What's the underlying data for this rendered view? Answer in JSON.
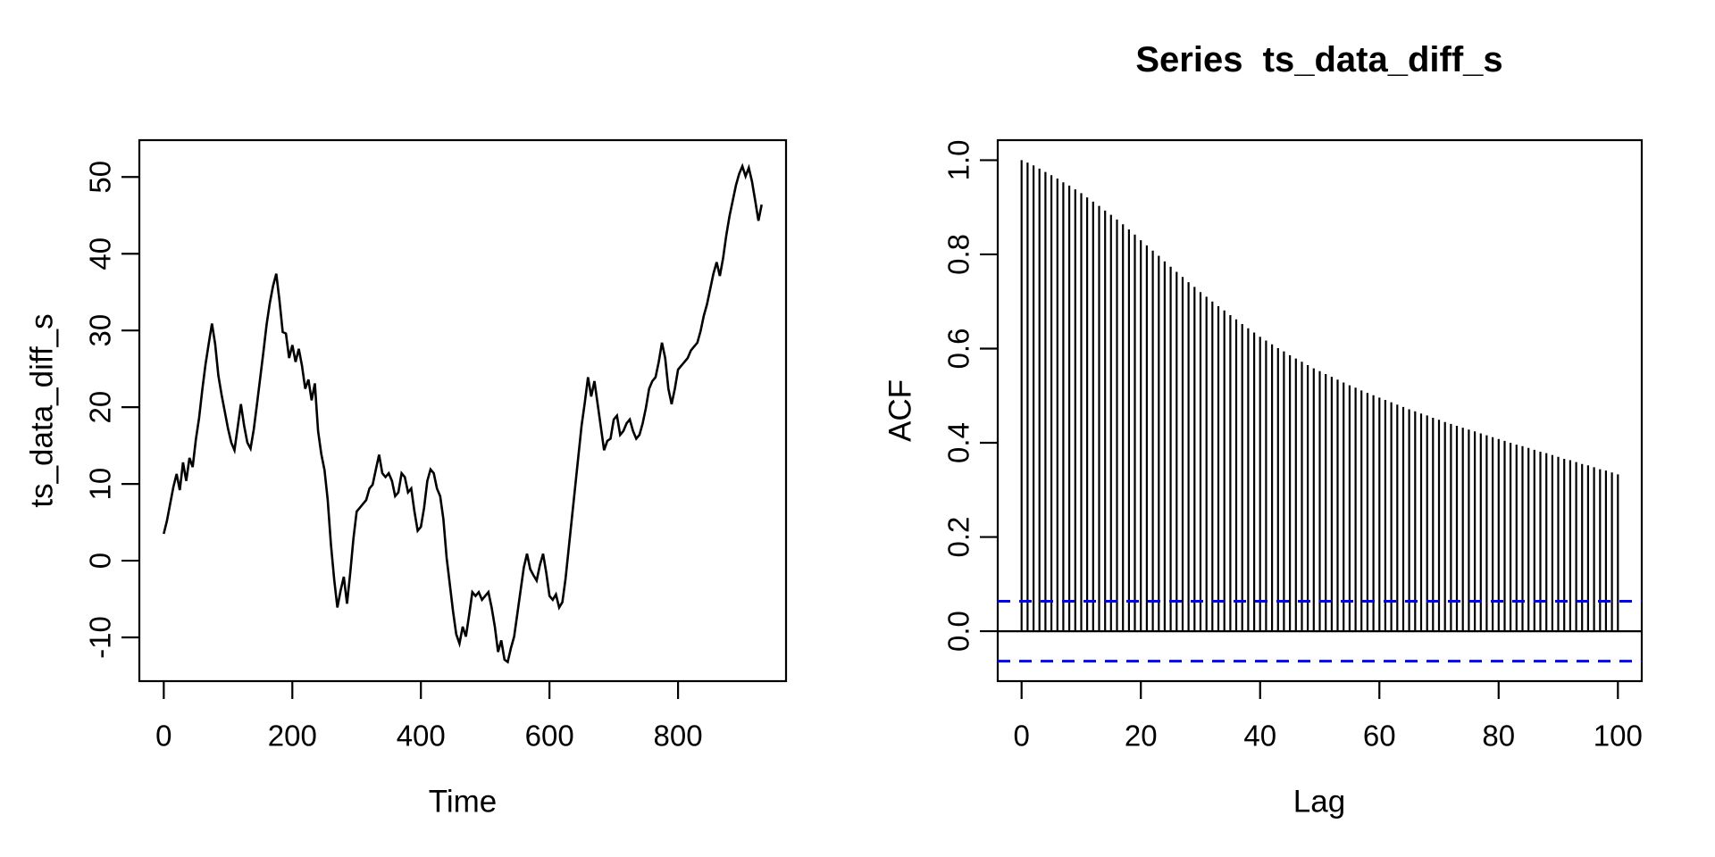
{
  "device": {
    "background": "#ffffff",
    "foreground": "#000000"
  },
  "chart_data": [
    {
      "id": "ts_plot",
      "type": "line",
      "title": "",
      "xlabel": "Time",
      "ylabel": "ts_data_diff_s",
      "line_color": "#000000",
      "x_ticks": [
        0,
        200,
        400,
        600,
        800
      ],
      "x_tick_labels": [
        "0",
        "200",
        "400",
        "600",
        "800"
      ],
      "y_ticks": [
        -10,
        0,
        10,
        20,
        30,
        40,
        50
      ],
      "y_tick_labels": [
        "-10",
        "0",
        "10",
        "20",
        "30",
        "40",
        "50"
      ],
      "xlim": [
        -38,
        968
      ],
      "ylim": [
        -15.7,
        54.8
      ],
      "grid": false,
      "x_start": 0,
      "x_step": 5,
      "values": [
        3.5,
        5.2,
        7.4,
        9.6,
        11.3,
        9.2,
        12.8,
        10.4,
        13.4,
        12.2,
        15.8,
        18.6,
        22.3,
        25.6,
        28.3,
        30.9,
        28.2,
        24.1,
        21.6,
        19.4,
        17.2,
        15.4,
        14.4,
        17.4,
        20.4,
        17.6,
        15.4,
        14.6,
        17.1,
        20.4,
        23.8,
        27.2,
        30.8,
        33.6,
        35.8,
        37.4,
        33.9,
        29.8,
        29.6,
        26.4,
        28.1,
        25.9,
        27.6,
        25.4,
        22.4,
        23.6,
        20.9,
        23.1,
        16.9,
        13.9,
        11.8,
        7.9,
        2.1,
        -2.4,
        -6.1,
        -3.9,
        -2.1,
        -5.6,
        -1.6,
        2.9,
        6.4,
        6.9,
        7.4,
        7.9,
        9.4,
        9.9,
        11.9,
        13.8,
        11.4,
        10.9,
        11.4,
        10.4,
        8.4,
        8.9,
        11.4,
        10.9,
        8.9,
        9.4,
        6.4,
        3.9,
        4.4,
        6.9,
        10.4,
        11.9,
        11.4,
        9.4,
        8.4,
        5.4,
        0.4,
        -3.1,
        -6.6,
        -9.6,
        -10.8,
        -8.6,
        -9.9,
        -7.1,
        -4.1,
        -4.6,
        -4.1,
        -5.1,
        -4.6,
        -4.1,
        -6.1,
        -8.6,
        -11.9,
        -10.4,
        -12.9,
        -13.2,
        -11.4,
        -9.9,
        -6.9,
        -3.9,
        -0.9,
        0.9,
        -1.1,
        -1.9,
        -2.6,
        -0.6,
        0.9,
        -1.6,
        -4.6,
        -5.1,
        -4.4,
        -6.1,
        -5.4,
        -2.4,
        1.6,
        5.6,
        9.6,
        13.6,
        17.6,
        20.6,
        23.9,
        21.4,
        23.4,
        20.4,
        17.4,
        14.4,
        15.6,
        15.9,
        18.4,
        18.9,
        16.4,
        16.9,
        17.9,
        18.4,
        16.9,
        15.9,
        16.4,
        17.9,
        19.9,
        22.4,
        23.4,
        23.9,
        25.9,
        28.4,
        26.4,
        22.4,
        20.4,
        22.4,
        24.9,
        25.4,
        25.9,
        26.4,
        27.4,
        27.9,
        28.4,
        29.9,
        31.9,
        33.4,
        35.4,
        37.4,
        38.9,
        37.1,
        39.4,
        42.4,
        44.9,
        46.9,
        48.9,
        50.4,
        51.4,
        50.1,
        51.2,
        49.4,
        46.9,
        44.3,
        46.4
      ]
    },
    {
      "id": "acf_plot",
      "type": "bar",
      "title": "Series  ts_data_diff_s",
      "xlabel": "Lag",
      "ylabel": "ACF",
      "bar_color": "#000000",
      "conf_level": 0.0636,
      "conf_color": "#0000FF",
      "conf_style": "dashed",
      "x_ticks": [
        0,
        20,
        40,
        60,
        80,
        100
      ],
      "x_tick_labels": [
        "0",
        "20",
        "40",
        "60",
        "80",
        "100"
      ],
      "y_ticks": [
        0.0,
        0.2,
        0.4,
        0.6,
        0.8,
        1.0
      ],
      "y_tick_labels": [
        "0.0",
        "0.2",
        "0.4",
        "0.6",
        "0.8",
        "1.0"
      ],
      "xlim": [
        -4,
        104
      ],
      "ylim": [
        -0.106,
        1.0425
      ],
      "grid": false,
      "lag_start": 0,
      "values": [
        1.0,
        0.995,
        0.989,
        0.982,
        0.975,
        0.968,
        0.961,
        0.953,
        0.946,
        0.938,
        0.93,
        0.921,
        0.912,
        0.903,
        0.893,
        0.884,
        0.874,
        0.864,
        0.853,
        0.842,
        0.83,
        0.819,
        0.808,
        0.797,
        0.785,
        0.774,
        0.763,
        0.752,
        0.741,
        0.731,
        0.72,
        0.71,
        0.7,
        0.69,
        0.681,
        0.671,
        0.662,
        0.652,
        0.643,
        0.634,
        0.625,
        0.617,
        0.609,
        0.601,
        0.594,
        0.586,
        0.579,
        0.572,
        0.565,
        0.558,
        0.552,
        0.546,
        0.54,
        0.534,
        0.528,
        0.522,
        0.517,
        0.511,
        0.506,
        0.501,
        0.496,
        0.491,
        0.486,
        0.481,
        0.476,
        0.471,
        0.467,
        0.462,
        0.458,
        0.453,
        0.449,
        0.444,
        0.44,
        0.436,
        0.432,
        0.428,
        0.424,
        0.42,
        0.416,
        0.412,
        0.408,
        0.404,
        0.4,
        0.396,
        0.393,
        0.389,
        0.385,
        0.381,
        0.378,
        0.374,
        0.37,
        0.366,
        0.363,
        0.359,
        0.355,
        0.352,
        0.348,
        0.344,
        0.341,
        0.337,
        0.333
      ]
    }
  ]
}
